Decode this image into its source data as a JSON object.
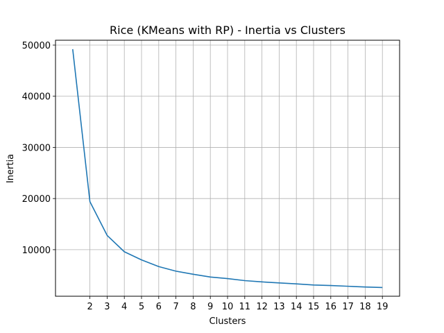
{
  "chart_data": {
    "type": "line",
    "title": "Rice (KMeans with RP) - Inertia vs Clusters",
    "xlabel": "Clusters",
    "ylabel": "Inertia",
    "grid": true,
    "xlim": [
      0,
      20
    ],
    "ylim": [
      900,
      50950
    ],
    "x_ticks": [
      2,
      3,
      4,
      5,
      6,
      7,
      8,
      9,
      10,
      11,
      12,
      13,
      14,
      15,
      16,
      17,
      18,
      19
    ],
    "y_ticks": [
      10000,
      20000,
      30000,
      40000,
      50000
    ],
    "series": [
      {
        "color": "#1f77b4",
        "x": [
          1,
          2,
          3,
          4,
          5,
          6,
          7,
          8,
          9,
          10,
          11,
          12,
          13,
          14,
          15,
          16,
          17,
          18,
          19
        ],
        "y": [
          49200,
          19400,
          12800,
          9600,
          8000,
          6700,
          5800,
          5200,
          4650,
          4350,
          3950,
          3700,
          3500,
          3320,
          3100,
          3000,
          2850,
          2700,
          2600
        ]
      }
    ]
  }
}
